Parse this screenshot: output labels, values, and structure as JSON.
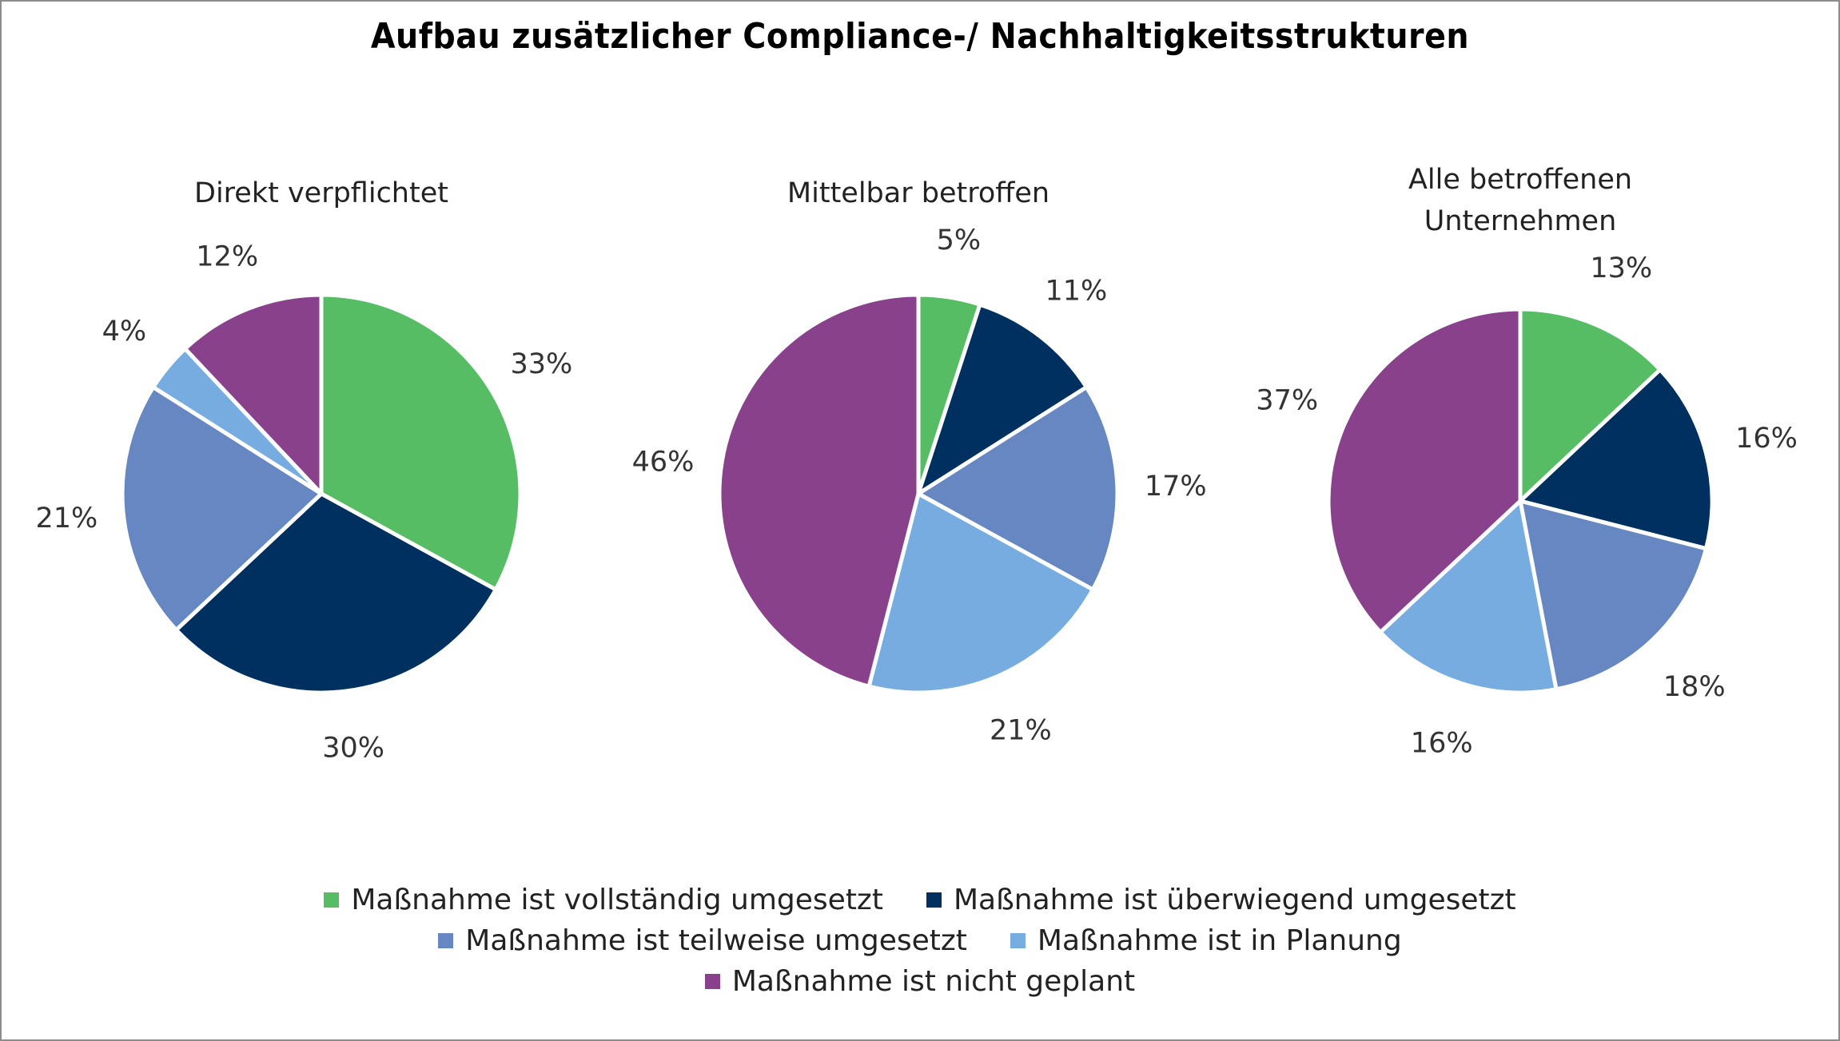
{
  "title": "Aufbau zusätzlicher Compliance-/ Nachhaltigkeitsstrukturen",
  "colors": {
    "vollstaendig": "#57bd65",
    "ueberwiegend": "#00305f",
    "teilweise": "#6787c2",
    "planung": "#76ace0",
    "nicht": "#88418a"
  },
  "legend": [
    {
      "key": "vollstaendig",
      "label": "Maßnahme ist vollständig umgesetzt"
    },
    {
      "key": "ueberwiegend",
      "label": "Maßnahme ist überwiegend umgesetzt"
    },
    {
      "key": "teilweise",
      "label": "Maßnahme ist teilweise umgesetzt"
    },
    {
      "key": "planung",
      "label": "Maßnahme ist in Planung"
    },
    {
      "key": "nicht",
      "label": "Maßnahme ist nicht geplant"
    }
  ],
  "chart_data": [
    {
      "type": "pie",
      "title": [
        "Direkt verpflichtet"
      ],
      "categories": [
        "Maßnahme ist vollständig umgesetzt",
        "Maßnahme ist überwiegend umgesetzt",
        "Maßnahme ist teilweise umgesetzt",
        "Maßnahme ist in Planung",
        "Maßnahme ist nicht geplant"
      ],
      "values": [
        33,
        30,
        21,
        4,
        12
      ],
      "labels": [
        "33%",
        "30%",
        "21%",
        "4%",
        "12%"
      ]
    },
    {
      "type": "pie",
      "title": [
        "Mittelbar betroffen"
      ],
      "categories": [
        "Maßnahme ist vollständig umgesetzt",
        "Maßnahme ist überwiegend umgesetzt",
        "Maßnahme ist teilweise umgesetzt",
        "Maßnahme ist in Planung",
        "Maßnahme ist nicht geplant"
      ],
      "values": [
        5,
        11,
        17,
        21,
        46
      ],
      "labels": [
        "5%",
        "11%",
        "17%",
        "21%",
        "46%"
      ]
    },
    {
      "type": "pie",
      "title": [
        "Alle betroffenen",
        "Unternehmen"
      ],
      "categories": [
        "Maßnahme ist vollständig umgesetzt",
        "Maßnahme ist überwiegend umgesetzt",
        "Maßnahme ist teilweise umgesetzt",
        "Maßnahme ist in Planung",
        "Maßnahme ist nicht geplant"
      ],
      "values": [
        13,
        16,
        18,
        16,
        37
      ],
      "labels": [
        "13%",
        "16%",
        "18%",
        "16%",
        "37%"
      ]
    }
  ]
}
